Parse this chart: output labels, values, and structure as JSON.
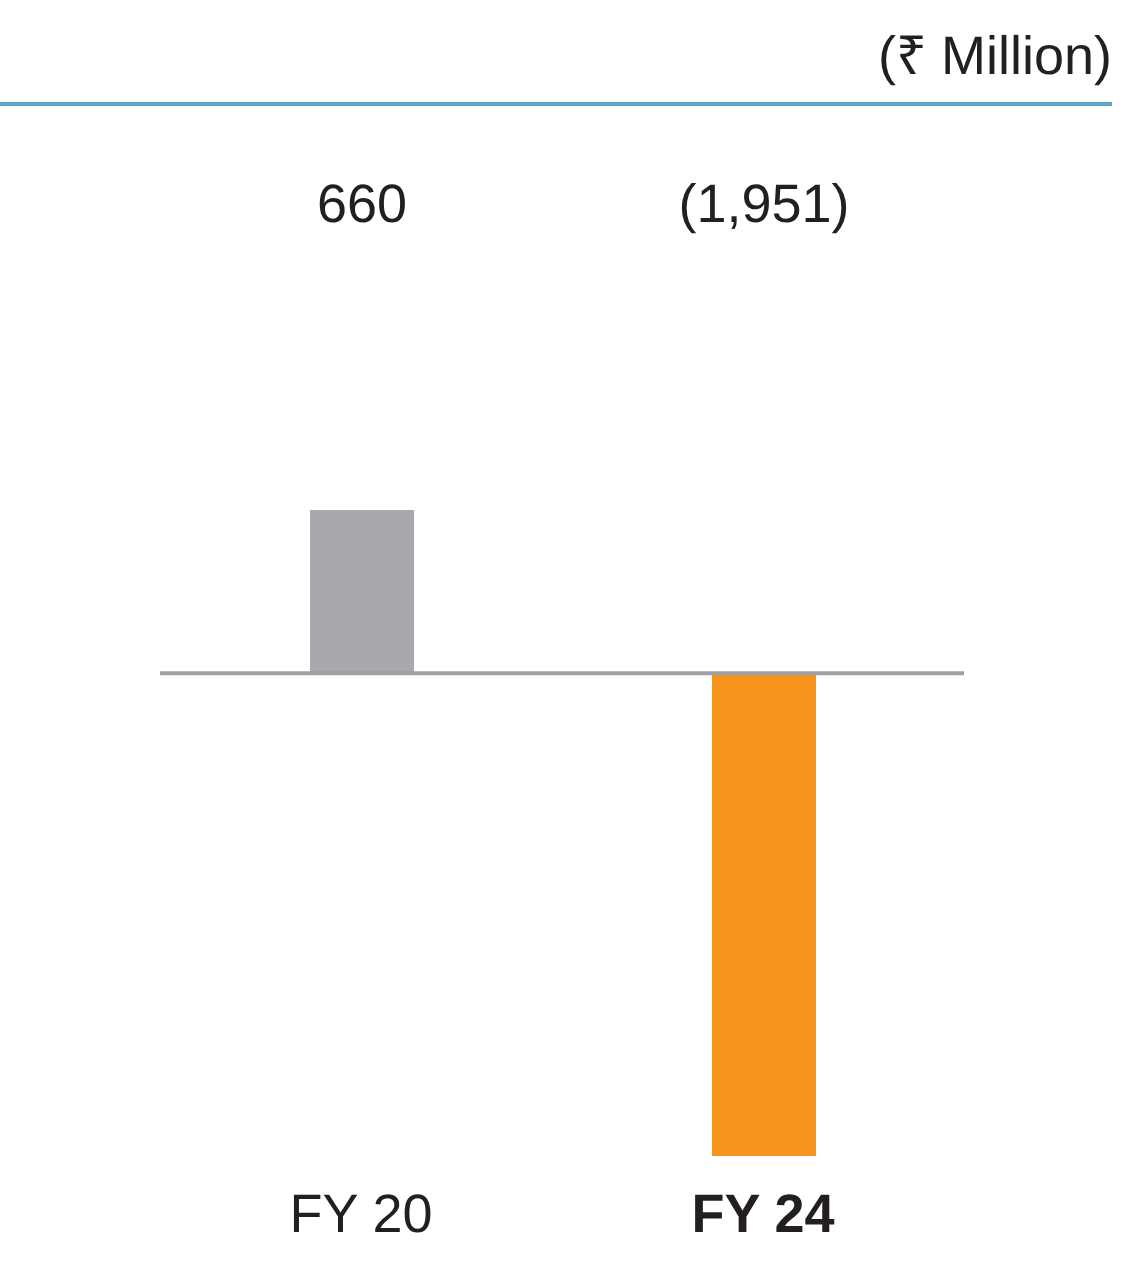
{
  "chart_data": {
    "type": "bar",
    "annotations": [
      "(₹ Million)"
    ],
    "categories": [
      "FY 20",
      "FY 24"
    ],
    "values": [
      660,
      -1951
    ],
    "value_labels": [
      "660",
      "(1,951)"
    ],
    "colors": [
      "#a7a9ac",
      "#f7941d"
    ],
    "legend": false,
    "grid": false
  }
}
